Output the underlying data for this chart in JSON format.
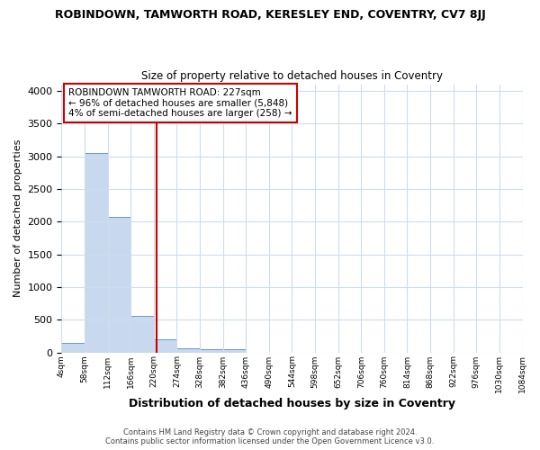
{
  "title": "ROBINDOWN, TAMWORTH ROAD, KERESLEY END, COVENTRY, CV7 8JJ",
  "subtitle": "Size of property relative to detached houses in Coventry",
  "xlabel": "Distribution of detached houses by size in Coventry",
  "ylabel": "Number of detached properties",
  "footer_line1": "Contains HM Land Registry data © Crown copyright and database right 2024.",
  "footer_line2": "Contains public sector information licensed under the Open Government Licence v3.0.",
  "annotation_line1": "ROBINDOWN TAMWORTH ROAD: 227sqm",
  "annotation_line2": "← 96% of detached houses are smaller (5,848)",
  "annotation_line3": "4% of semi-detached houses are larger (258) →",
  "bar_color": "#c8d8ee",
  "bar_edge_color": "#6699cc",
  "ref_line_color": "#cc0000",
  "ref_line_x": 227,
  "bin_edges": [
    4,
    58,
    112,
    166,
    220,
    274,
    328,
    382,
    436,
    490,
    544,
    598,
    652,
    706,
    760,
    814,
    868,
    922,
    976,
    1030,
    1084
  ],
  "bar_heights": [
    150,
    3050,
    2070,
    560,
    200,
    65,
    50,
    50,
    0,
    0,
    0,
    0,
    0,
    0,
    0,
    0,
    0,
    0,
    0,
    0
  ],
  "ylim": [
    0,
    4100
  ],
  "yticks": [
    0,
    500,
    1000,
    1500,
    2000,
    2500,
    3000,
    3500,
    4000
  ],
  "fig_bg_color": "#ffffff",
  "plot_bg_color": "#ffffff",
  "grid_color": "#ccddee",
  "title_fontsize": 9,
  "subtitle_fontsize": 8.5
}
